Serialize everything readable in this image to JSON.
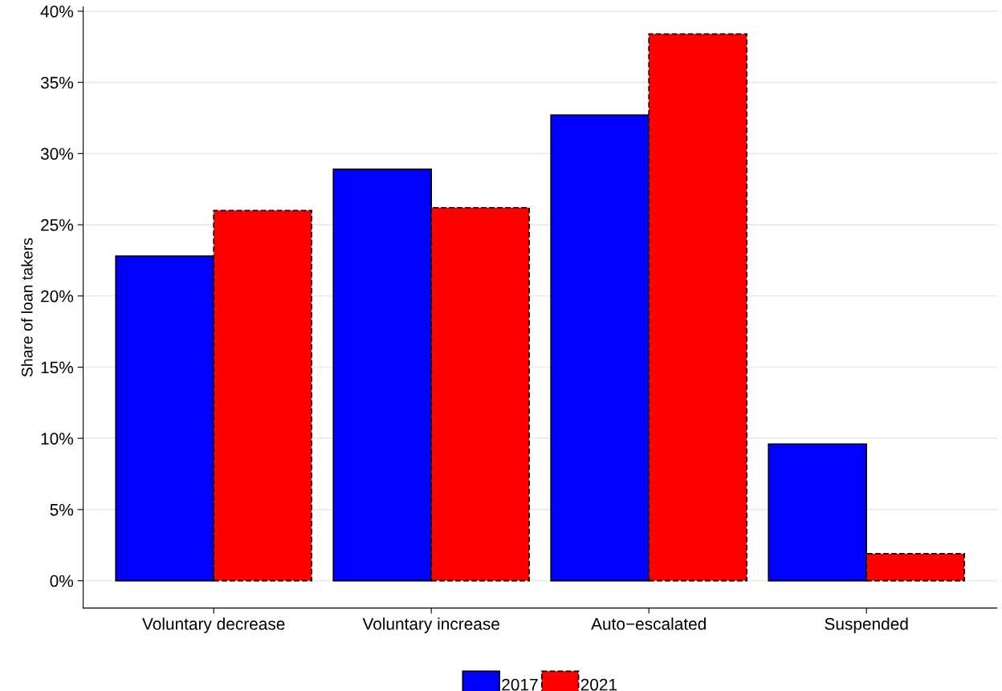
{
  "chart_data": {
    "type": "bar",
    "ylabel": "Share of loan takers",
    "categories": [
      "Voluntary decrease",
      "Voluntary increase",
      "Auto−escalated",
      "Suspended"
    ],
    "series": [
      {
        "name": "2017",
        "color": "#0000ff",
        "line_style": "solid",
        "values": [
          22.8,
          28.9,
          32.7,
          9.6
        ]
      },
      {
        "name": "2021",
        "color": "#ff0000",
        "line_style": "dashed",
        "values": [
          26.0,
          26.2,
          38.4,
          1.9
        ]
      }
    ],
    "ylim": [
      -1.92,
      40.3
    ],
    "yticks": [
      {
        "value": 0,
        "label": "0%"
      },
      {
        "value": 5,
        "label": "5%"
      },
      {
        "value": 10,
        "label": "10%"
      },
      {
        "value": 15,
        "label": "15%"
      },
      {
        "value": 20,
        "label": "20%"
      },
      {
        "value": 25,
        "label": "25%"
      },
      {
        "value": 30,
        "label": "30%"
      },
      {
        "value": 35,
        "label": "35%"
      },
      {
        "value": 40,
        "label": "40%"
      }
    ],
    "grid": "y",
    "legend": "bottom"
  }
}
